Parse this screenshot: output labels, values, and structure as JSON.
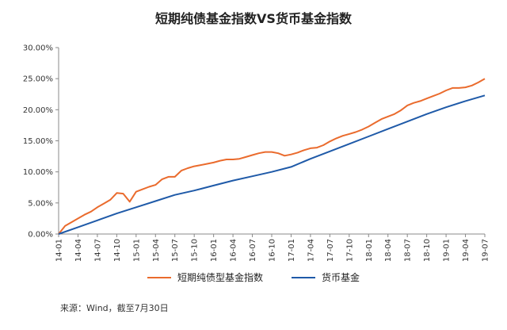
{
  "title": "短期纯债基金指数VS货币基金指数",
  "source": "来源：Wind，截至7月30日",
  "colors": {
    "short_bond": "#ea6b2d",
    "money_fund": "#1f5aa8",
    "axis": "#888888"
  },
  "chart_data": {
    "type": "line",
    "title": "短期纯债基金指数VS货币基金指数",
    "xlabel": "",
    "ylabel": "",
    "ylim": [
      0,
      30
    ],
    "y_ticks": [
      "0.00%",
      "5.00%",
      "10.00%",
      "15.00%",
      "20.00%",
      "25.00%",
      "30.00%"
    ],
    "x_ticks": [
      "14-01",
      "14-04",
      "14-07",
      "14-10",
      "15-01",
      "15-04",
      "15-07",
      "15-10",
      "16-01",
      "16-04",
      "16-07",
      "16-10",
      "17-01",
      "17-04",
      "17-07",
      "17-10",
      "18-01",
      "18-04",
      "18-07",
      "18-10",
      "19-01",
      "19-04",
      "19-07"
    ],
    "grid": false,
    "legend_position": "bottom",
    "series": [
      {
        "name": "短期纯债型基金指数",
        "x": [
          "14-01",
          "14-02",
          "14-03",
          "14-04",
          "14-05",
          "14-06",
          "14-07",
          "14-08",
          "14-09",
          "14-10",
          "14-11",
          "14-12",
          "15-01",
          "15-02",
          "15-03",
          "15-04",
          "15-05",
          "15-06",
          "15-07",
          "15-08",
          "15-09",
          "15-10",
          "15-11",
          "15-12",
          "16-01",
          "16-02",
          "16-03",
          "16-04",
          "16-05",
          "16-06",
          "16-07",
          "16-08",
          "16-09",
          "16-10",
          "16-11",
          "16-12",
          "17-01",
          "17-02",
          "17-03",
          "17-04",
          "17-05",
          "17-06",
          "17-07",
          "17-08",
          "17-09",
          "17-10",
          "17-11",
          "17-12",
          "18-01",
          "18-02",
          "18-03",
          "18-04",
          "18-05",
          "18-06",
          "18-07",
          "18-08",
          "18-09",
          "18-10",
          "18-11",
          "18-12",
          "19-01",
          "19-02",
          "19-03",
          "19-04",
          "19-05",
          "19-06",
          "19-07"
        ],
        "values": [
          0.0,
          1.3,
          1.9,
          2.5,
          3.1,
          3.6,
          4.3,
          4.9,
          5.5,
          6.6,
          6.5,
          5.2,
          6.8,
          7.2,
          7.6,
          7.9,
          8.8,
          9.2,
          9.2,
          10.2,
          10.6,
          10.9,
          11.1,
          11.3,
          11.5,
          11.8,
          12.0,
          12.0,
          12.1,
          12.4,
          12.7,
          13.0,
          13.2,
          13.2,
          13.0,
          12.6,
          12.8,
          13.1,
          13.5,
          13.8,
          13.9,
          14.3,
          14.9,
          15.4,
          15.8,
          16.1,
          16.4,
          16.8,
          17.3,
          17.9,
          18.5,
          18.9,
          19.3,
          19.9,
          20.7,
          21.1,
          21.4,
          21.8,
          22.2,
          22.6,
          23.1,
          23.5,
          23.5,
          23.6,
          23.9,
          24.4,
          25.0
        ]
      },
      {
        "name": "货币基金",
        "x": [
          "14-01",
          "14-04",
          "14-07",
          "14-10",
          "15-01",
          "15-04",
          "15-07",
          "15-10",
          "16-01",
          "16-04",
          "16-07",
          "16-10",
          "17-01",
          "17-04",
          "17-07",
          "17-10",
          "18-01",
          "18-04",
          "18-07",
          "18-10",
          "19-01",
          "19-04",
          "19-07"
        ],
        "values": [
          0.0,
          1.1,
          2.2,
          3.3,
          4.3,
          5.3,
          6.3,
          7.0,
          7.8,
          8.6,
          9.3,
          10.0,
          10.8,
          12.1,
          13.3,
          14.5,
          15.7,
          16.9,
          18.1,
          19.3,
          20.4,
          21.4,
          22.3
        ]
      }
    ]
  }
}
